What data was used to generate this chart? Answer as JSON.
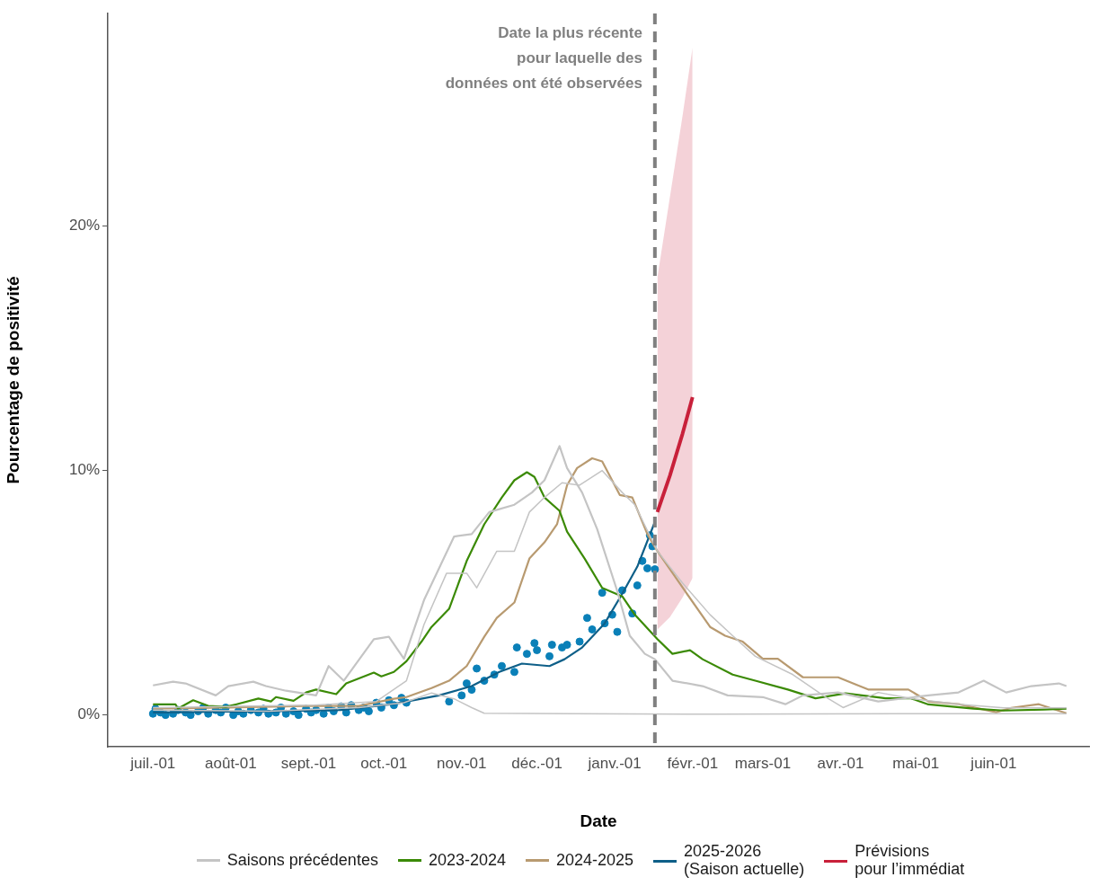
{
  "chart_data": {
    "type": "line",
    "xlabel": "Date",
    "ylabel": "Pourcentage de positivité",
    "legend": "bottom",
    "xlim": [
      "2025-06-13",
      "2026-07-09"
    ],
    "ylim": [
      -1.3,
      28.7
    ],
    "xticks": [
      {
        "value": "2025-07-01",
        "label": "juil.-01"
      },
      {
        "value": "2025-08-01",
        "label": "août-01"
      },
      {
        "value": "2025-09-01",
        "label": "sept.-01"
      },
      {
        "value": "2025-10-01",
        "label": "oct.-01"
      },
      {
        "value": "2025-11-01",
        "label": "nov.-01"
      },
      {
        "value": "2025-12-01",
        "label": "déc.-01"
      },
      {
        "value": "2026-01-01",
        "label": "janv.-01"
      },
      {
        "value": "2026-02-01",
        "label": "févr.-01"
      },
      {
        "value": "2026-03-01",
        "label": "mars-01"
      },
      {
        "value": "2026-04-01",
        "label": "avr.-01"
      },
      {
        "value": "2026-05-01",
        "label": "mai-01"
      },
      {
        "value": "2026-06-01",
        "label": "juin-01"
      }
    ],
    "yticks": [
      {
        "value": 0,
        "label": "0%"
      },
      {
        "value": 10,
        "label": "10%"
      },
      {
        "value": 20,
        "label": "20%"
      }
    ],
    "ref_lines": [
      {
        "axis": "x",
        "value": "2026-01-17",
        "label": "Date la plus récente\npour laquelle des\ndonnées ont été observées",
        "color": "#808080",
        "line_style": "dashed"
      }
    ],
    "series": [
      {
        "name": "Saisons précédentes",
        "color": "#c4c4c4",
        "x": [
          "2025-07-01",
          "2025-07-09",
          "2025-07-14",
          "2025-07-26",
          "2025-07-31",
          "2025-08-10",
          "2025-08-15",
          "2025-08-23",
          "2025-09-04",
          "2025-09-09",
          "2025-09-15",
          "2025-09-27",
          "2025-10-03",
          "2025-10-09",
          "2025-10-17",
          "2025-10-29",
          "2025-11-05",
          "2025-11-12",
          "2025-11-22",
          "2025-11-29",
          "2025-12-04",
          "2025-12-10",
          "2025-12-13",
          "2025-12-19",
          "2025-12-25",
          "2026-01-02",
          "2026-01-07",
          "2026-01-13",
          "2026-01-17",
          "2026-01-24",
          "2026-02-05",
          "2026-02-15",
          "2026-03-01",
          "2026-03-10",
          "2026-03-17",
          "2026-03-31",
          "2026-04-16",
          "2026-05-06",
          "2026-05-18",
          "2026-05-28",
          "2026-06-06",
          "2026-06-16",
          "2026-06-27",
          "2026-06-30"
        ],
        "values": [
          1.21,
          1.36,
          1.29,
          0.8,
          1.18,
          1.36,
          1.18,
          0.99,
          0.8,
          2.0,
          1.4,
          3.1,
          3.2,
          2.3,
          4.7,
          7.3,
          7.4,
          8.3,
          8.6,
          9.1,
          9.6,
          11.0,
          10.1,
          9.1,
          7.6,
          5.07,
          3.24,
          2.5,
          2.28,
          1.4,
          1.18,
          0.8,
          0.73,
          0.44,
          0.8,
          0.92,
          0.55,
          0.8,
          0.92,
          1.4,
          0.92,
          1.18,
          1.29,
          1.18
        ]
      },
      {
        "color": "#c4c4c4",
        "x": [
          "2025-07-01",
          "2025-08-02",
          "2025-09-03",
          "2025-09-28",
          "2025-10-10",
          "2025-10-17",
          "2025-10-26",
          "2025-11-03",
          "2025-11-07",
          "2025-11-15",
          "2025-11-22",
          "2025-11-28",
          "2025-12-04",
          "2025-12-11",
          "2025-12-18",
          "2025-12-27",
          "2026-01-04",
          "2026-01-09",
          "2026-01-18",
          "2026-01-28",
          "2026-02-08",
          "2026-02-17",
          "2026-02-26",
          "2026-03-13",
          "2026-03-25",
          "2026-04-02",
          "2026-04-16",
          "2026-04-30",
          "2026-05-18",
          "2026-06-05",
          "2026-06-30"
        ],
        "values": [
          0.3,
          0.35,
          0.4,
          0.55,
          1.4,
          3.7,
          5.8,
          5.8,
          5.2,
          6.7,
          6.7,
          8.3,
          8.9,
          9.5,
          9.4,
          10.0,
          9.1,
          8.6,
          6.7,
          5.4,
          4.1,
          3.24,
          2.4,
          1.65,
          0.8,
          0.3,
          0.92,
          0.66,
          0.44,
          0.29,
          0.29
        ]
      },
      {
        "color": "#c4c4c4",
        "x": [
          "2025-07-01",
          "2025-08-16",
          "2025-09-21",
          "2025-10-09",
          "2025-10-20",
          "2025-10-29",
          "2025-11-05",
          "2025-11-10",
          "2025-12-16",
          "2026-02-11",
          "2026-04-24",
          "2026-06-30"
        ],
        "values": [
          0.2,
          0.15,
          0.3,
          0.5,
          0.9,
          0.66,
          0.3,
          0.07,
          0.05,
          0.03,
          0.05,
          0.05
        ]
      },
      {
        "name": "2023-2024",
        "color": "#3b8a06",
        "x": [
          "2025-07-01",
          "2025-07-10",
          "2025-07-11",
          "2025-07-17",
          "2025-07-23",
          "2025-07-30",
          "2025-08-03",
          "2025-08-12",
          "2025-08-17",
          "2025-08-19",
          "2025-08-26",
          "2025-08-31",
          "2025-09-04",
          "2025-09-12",
          "2025-09-16",
          "2025-09-27",
          "2025-09-30",
          "2025-10-05",
          "2025-10-10",
          "2025-10-16",
          "2025-10-20",
          "2025-10-27",
          "2025-11-03",
          "2025-11-10",
          "2025-11-17",
          "2025-11-22",
          "2025-11-27",
          "2025-11-30",
          "2025-12-04",
          "2025-12-10",
          "2025-12-13",
          "2025-12-20",
          "2025-12-27",
          "2026-01-04",
          "2026-01-09",
          "2026-01-18",
          "2026-01-24",
          "2026-01-31",
          "2026-02-05",
          "2026-02-17",
          "2026-02-26",
          "2026-03-11",
          "2026-03-22",
          "2026-04-03",
          "2026-04-19",
          "2026-04-29",
          "2026-05-06",
          "2026-05-24",
          "2026-06-05",
          "2026-06-21",
          "2026-06-30"
        ],
        "values": [
          0.43,
          0.43,
          0.26,
          0.6,
          0.37,
          0.33,
          0.43,
          0.67,
          0.55,
          0.73,
          0.58,
          0.92,
          1.04,
          0.85,
          1.29,
          1.73,
          1.58,
          1.76,
          2.2,
          3.0,
          3.6,
          4.34,
          6.3,
          7.8,
          8.9,
          9.6,
          9.93,
          9.74,
          8.9,
          8.35,
          7.5,
          6.4,
          5.2,
          4.85,
          4.1,
          3.1,
          2.5,
          2.65,
          2.28,
          1.65,
          1.4,
          1.04,
          0.68,
          0.88,
          0.68,
          0.68,
          0.43,
          0.26,
          0.18,
          0.22,
          0.26
        ]
      },
      {
        "name": "2024-2025",
        "color": "#b89a70",
        "x": [
          "2025-07-01",
          "2025-07-29",
          "2025-08-31",
          "2025-09-21",
          "2025-10-05",
          "2025-10-10",
          "2025-10-20",
          "2025-10-27",
          "2025-11-03",
          "2025-11-10",
          "2025-11-15",
          "2025-11-22",
          "2025-11-28",
          "2025-12-04",
          "2025-12-09",
          "2025-12-13",
          "2025-12-17",
          "2025-12-23",
          "2025-12-27",
          "2026-01-03",
          "2026-01-08",
          "2026-01-14",
          "2026-01-18",
          "2026-01-29",
          "2026-02-08",
          "2026-02-14",
          "2026-02-21",
          "2026-03-01",
          "2026-03-07",
          "2026-03-17",
          "2026-03-31",
          "2026-04-12",
          "2026-04-28",
          "2026-05-06",
          "2026-05-18",
          "2026-06-02",
          "2026-06-08",
          "2026-06-19",
          "2026-06-30"
        ],
        "values": [
          0.26,
          0.3,
          0.37,
          0.37,
          0.66,
          0.73,
          1.1,
          1.4,
          2.0,
          3.2,
          3.97,
          4.6,
          6.4,
          7.06,
          7.8,
          9.4,
          10.1,
          10.5,
          10.37,
          9.0,
          8.9,
          7.4,
          6.7,
          5.07,
          3.6,
          3.24,
          3.0,
          2.3,
          2.3,
          1.54,
          1.54,
          1.04,
          1.04,
          0.55,
          0.44,
          0.11,
          0.29,
          0.44,
          0.07
        ]
      },
      {
        "type": "scatter",
        "color": "#0a80b8",
        "x": [
          "2025-07-01",
          "2025-07-02",
          "2025-07-04",
          "2025-07-06",
          "2025-07-09",
          "2025-07-11",
          "2025-07-14",
          "2025-07-16",
          "2025-07-19",
          "2025-07-21",
          "2025-07-23",
          "2025-07-26",
          "2025-07-28",
          "2025-07-30",
          "2025-08-02",
          "2025-08-04",
          "2025-08-06",
          "2025-08-09",
          "2025-08-12",
          "2025-08-14",
          "2025-08-16",
          "2025-08-19",
          "2025-08-21",
          "2025-08-23",
          "2025-08-26",
          "2025-08-28",
          "2025-08-31",
          "2025-09-02",
          "2025-09-04",
          "2025-09-07",
          "2025-09-09",
          "2025-09-11",
          "2025-09-14",
          "2025-09-16",
          "2025-09-18",
          "2025-09-21",
          "2025-09-23",
          "2025-09-25",
          "2025-09-28",
          "2025-09-30",
          "2025-10-03",
          "2025-10-05",
          "2025-10-08",
          "2025-10-10",
          "2025-10-27",
          "2025-11-01",
          "2025-11-03",
          "2025-11-05",
          "2025-11-07",
          "2025-11-10",
          "2025-11-14",
          "2025-11-17",
          "2025-11-22",
          "2025-11-23",
          "2025-11-27",
          "2025-11-30",
          "2025-12-01",
          "2025-12-06",
          "2025-12-07",
          "2025-12-11",
          "2025-12-13",
          "2025-12-18",
          "2025-12-21",
          "2025-12-23",
          "2025-12-27",
          "2025-12-28",
          "2025-12-31",
          "2026-01-02",
          "2026-01-04",
          "2026-01-08",
          "2026-01-10",
          "2026-01-12",
          "2026-01-14",
          "2026-01-15",
          "2026-01-16",
          "2026-01-17"
        ],
        "values": [
          0.05,
          0.25,
          0.1,
          0.0,
          0.05,
          0.2,
          0.1,
          0.0,
          0.15,
          0.3,
          0.05,
          0.2,
          0.1,
          0.3,
          0.0,
          0.15,
          0.05,
          0.2,
          0.1,
          0.25,
          0.05,
          0.1,
          0.3,
          0.05,
          0.15,
          0.0,
          0.25,
          0.1,
          0.2,
          0.05,
          0.3,
          0.15,
          0.35,
          0.1,
          0.4,
          0.2,
          0.3,
          0.15,
          0.5,
          0.3,
          0.6,
          0.4,
          0.7,
          0.5,
          0.55,
          0.8,
          1.29,
          1.03,
          1.9,
          1.4,
          1.65,
          2.0,
          1.76,
          2.76,
          2.5,
          2.94,
          2.65,
          2.4,
          2.87,
          2.76,
          2.87,
          3.0,
          3.97,
          3.5,
          5.0,
          3.75,
          4.1,
          3.4,
          5.1,
          4.15,
          5.3,
          6.3,
          6.0,
          7.35,
          6.9,
          5.96
        ]
      },
      {
        "name": "2025-2026\n(Saison actuelle)",
        "color": "#0e5f88",
        "x": [
          "2025-07-01",
          "2025-08-16",
          "2025-09-14",
          "2025-10-05",
          "2025-10-23",
          "2025-11-05",
          "2025-11-16",
          "2025-11-25",
          "2025-12-06",
          "2025-12-12",
          "2025-12-19",
          "2025-12-28",
          "2026-01-04",
          "2026-01-10",
          "2026-01-17"
        ],
        "values": [
          0.1,
          0.15,
          0.2,
          0.45,
          0.8,
          1.18,
          1.76,
          2.1,
          2.0,
          2.28,
          2.76,
          3.75,
          4.96,
          6.07,
          7.9
        ]
      },
      {
        "name": "Prévisions\npour l’immédiat",
        "color": "#c8203a",
        "x": [
          "2026-01-18",
          "2026-01-23",
          "2026-01-28",
          "2026-02-01"
        ],
        "values": [
          8.3,
          9.8,
          11.5,
          13.0
        ],
        "lower": [
          3.5,
          4.0,
          4.8,
          5.6
        ],
        "upper": [
          17.9,
          21.2,
          24.5,
          27.3
        ]
      }
    ]
  }
}
